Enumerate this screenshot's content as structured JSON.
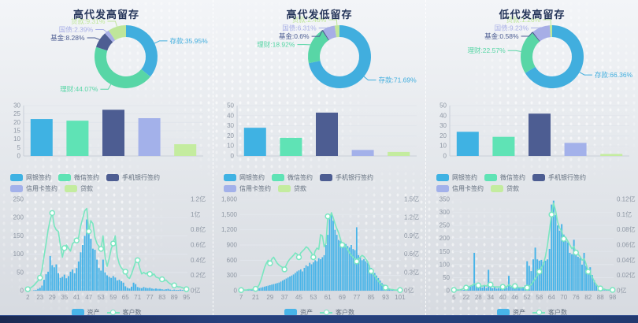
{
  "colors": {
    "bar_series": [
      "#3fb2e3",
      "#5fe3b5",
      "#4d5d92",
      "#a3b1ea",
      "#c4ec9f"
    ],
    "donut_series": [
      "#41aede",
      "#58d6a6",
      "#4d5d92",
      "#a7aee6",
      "#bfe69a"
    ],
    "hist_bar": "#48b4e8",
    "hist_line": "#79e6c0",
    "axis_text": "#8d96a3",
    "grid": "#e2e6ec",
    "axis_line": "#c9cfd8",
    "title": "#25355a",
    "legend_text": "#626e7d"
  },
  "chart_data": [
    {
      "type": "pie",
      "title": "高代发高留存",
      "labels": [
        "存款",
        "理财",
        "基金",
        "国债",
        "贷款"
      ],
      "values": [
        35.95,
        44.07,
        8.28,
        2.39,
        9.31
      ],
      "unit": "%",
      "legend_position": "none"
    },
    {
      "type": "bar",
      "categories": [
        "网银签约",
        "微信签约",
        "手机银行签约",
        "信用卡签约",
        "贷款"
      ],
      "values": [
        22,
        21,
        27.5,
        22.5,
        7
      ],
      "ytick_labels": [
        "0",
        "5",
        "10",
        "15",
        "20",
        "25",
        "30"
      ],
      "ymax": 30,
      "legend_position": "bottom"
    },
    {
      "type": "bar",
      "x_tick_labels": [
        "2",
        "23",
        "29",
        "35",
        "41",
        "47",
        "53",
        "59",
        "65",
        "71",
        "77",
        "83",
        "89",
        "95"
      ],
      "x_tick_step": 6,
      "left_tick_labels": [
        "0",
        "50",
        "100",
        "150",
        "200",
        "250"
      ],
      "left_max": 250,
      "right_tick_labels": [
        "0亿",
        "0.2亿",
        "0.4亿",
        "0.6亿",
        "0.8亿",
        "1亿",
        "1.2亿"
      ],
      "right_max": 1.2,
      "series": [
        {
          "name": "资产",
          "kind": "bar",
          "axis": "left",
          "values": [
            2,
            0,
            0,
            1,
            2,
            5,
            8,
            14,
            30,
            45,
            52,
            95,
            70,
            64,
            72,
            48,
            35,
            38,
            44,
            34,
            40,
            52,
            58,
            48,
            62,
            80,
            105,
            125,
            150,
            195,
            160,
            142,
            115,
            112,
            85,
            62,
            55,
            85,
            50,
            42,
            38,
            35,
            40,
            36,
            28,
            30,
            26,
            22,
            12,
            8,
            6,
            11,
            22,
            18,
            10,
            8,
            7,
            10,
            8,
            7,
            8,
            6,
            5,
            6,
            5,
            5,
            4,
            3,
            4,
            5,
            3,
            2,
            3,
            2,
            2,
            3,
            2,
            1,
            2
          ]
        },
        {
          "name": "客户数",
          "kind": "line",
          "axis": "right",
          "values": [
            0.02,
            0.03,
            0.05,
            0.07,
            0.1,
            0.13,
            0.17,
            0.28,
            0.45,
            0.62,
            0.8,
            0.93,
            1.02,
            0.85,
            0.8,
            0.78,
            0.6,
            0.44,
            0.56,
            0.6,
            0.56,
            0.52,
            0.62,
            0.64,
            0.66,
            0.7,
            0.85,
            0.95,
            1.05,
            1.08,
            0.78,
            0.92,
            0.88,
            0.7,
            0.62,
            0.58,
            0.55,
            0.72,
            0.45,
            0.32,
            0.42,
            0.55,
            0.62,
            0.72,
            0.45,
            0.35,
            0.3,
            0.27,
            0.25,
            0.18,
            0.16,
            0.22,
            0.3,
            0.38,
            0.4,
            0.3,
            0.22,
            0.24,
            0.22,
            0.24,
            0.22,
            0.2,
            0.22,
            0.18,
            0.17,
            0.16,
            0.15,
            0.13,
            0.14,
            0.11,
            0.09,
            0.08,
            0.07,
            0.06,
            0.05,
            0.05,
            0.04,
            0.03,
            0.02
          ]
        }
      ]
    },
    {
      "type": "pie",
      "title": "高代发低留存",
      "labels": [
        "存款",
        "理财",
        "基金",
        "国债",
        "贷款"
      ],
      "values": [
        71.69,
        18.92,
        0.6,
        6.31,
        2.48
      ],
      "unit": "%",
      "legend_position": "none"
    },
    {
      "type": "bar",
      "categories": [
        "网银签约",
        "微信签约",
        "手机银行签约",
        "信用卡签约",
        "贷款"
      ],
      "values": [
        28,
        18,
        43,
        6,
        4
      ],
      "ytick_labels": [
        "0",
        "10",
        "20",
        "30",
        "40",
        "50"
      ],
      "ymax": 50,
      "legend_position": "bottom"
    },
    {
      "type": "bar",
      "x_tick_labels": [
        "7",
        "21",
        "29",
        "37",
        "45",
        "53",
        "61",
        "69",
        "77",
        "85",
        "93",
        "101"
      ],
      "x_tick_step": 8,
      "left_tick_labels": [
        "0",
        "300",
        "600",
        "900",
        "1,200",
        "1,500",
        "1,800"
      ],
      "left_max": 1800,
      "right_tick_labels": [
        "0亿",
        "0.3亿",
        "0.6亿",
        "0.9亿",
        "1.2亿",
        "1.5亿"
      ],
      "right_max": 1.5,
      "series": [
        {
          "name": "资产",
          "kind": "bar",
          "axis": "left",
          "values": [
            5,
            2,
            3,
            5,
            8,
            10,
            15,
            20,
            30,
            40,
            50,
            60,
            70,
            80,
            90,
            100,
            110,
            120,
            130,
            140,
            150,
            160,
            180,
            200,
            220,
            240,
            260,
            280,
            300,
            320,
            350,
            380,
            400,
            420,
            380,
            450,
            500,
            480,
            550,
            520,
            560,
            600,
            580,
            640,
            620,
            660,
            700,
            900,
            1100,
            1450,
            1500,
            1380,
            1200,
            1100,
            1000,
            980,
            950,
            900,
            920,
            880,
            850,
            900,
            820,
            800,
            1250,
            700,
            650,
            600,
            620,
            580,
            550,
            500,
            450,
            400,
            350,
            300,
            250,
            200,
            150,
            120,
            80,
            60,
            40,
            30,
            20,
            10,
            5,
            3,
            2
          ]
        },
        {
          "name": "客户数",
          "kind": "line",
          "axis": "right",
          "values": [
            0.01,
            0.01,
            0.01,
            0.01,
            0.02,
            0.02,
            0.02,
            0.03,
            0.03,
            0.05,
            0.1,
            0.18,
            0.28,
            0.38,
            0.45,
            0.5,
            0.45,
            0.52,
            0.55,
            0.5,
            0.45,
            0.42,
            0.4,
            0.38,
            0.35,
            0.42,
            0.48,
            0.52,
            0.55,
            0.58,
            0.62,
            0.6,
            0.55,
            0.62,
            0.65,
            0.68,
            0.72,
            0.7,
            0.66,
            0.62,
            0.55,
            0.65,
            0.7,
            0.68,
            0.92,
            0.9,
            0.72,
            0.78,
            1.22,
            1.18,
            1.28,
            1.2,
            1.1,
            1.02,
            0.95,
            0.85,
            0.75,
            0.78,
            0.72,
            0.68,
            0.62,
            0.58,
            0.55,
            0.52,
            0.48,
            0.52,
            0.55,
            0.58,
            0.56,
            0.52,
            0.48,
            0.4,
            0.32,
            0.28,
            0.24,
            0.2,
            0.16,
            0.12,
            0.09,
            0.07,
            0.05,
            0.04,
            0.03,
            0.02,
            0.02,
            0.01,
            0.01,
            0.01,
            0.01
          ]
        }
      ]
    },
    {
      "type": "pie",
      "title": "低代发高留存",
      "labels": [
        "存款",
        "理财",
        "基金",
        "国债",
        "贷款"
      ],
      "values": [
        66.36,
        22.57,
        0.58,
        9.23,
        1.26
      ],
      "unit": "%",
      "legend_position": "none"
    },
    {
      "type": "bar",
      "categories": [
        "网银签约",
        "微信签约",
        "手机银行签约",
        "信用卡签约",
        "贷款"
      ],
      "values": [
        24,
        19,
        42,
        13,
        2
      ],
      "ytick_labels": [
        "0",
        "10",
        "20",
        "30",
        "40",
        "50"
      ],
      "ymax": 50,
      "legend_position": "bottom"
    },
    {
      "type": "bar",
      "x_tick_labels": [
        "5",
        "22",
        "28",
        "34",
        "40",
        "46",
        "52",
        "58",
        "64",
        "70",
        "76",
        "82",
        "88",
        "98"
      ],
      "x_tick_step": 6,
      "left_tick_labels": [
        "0",
        "50",
        "100",
        "150",
        "200",
        "250",
        "300",
        "350"
      ],
      "left_max": 350,
      "right_tick_labels": [
        "0亿",
        "0.02亿",
        "0.04亿",
        "0.06亿",
        "0.08亿",
        "0.1亿",
        "0.12亿"
      ],
      "right_max": 0.12,
      "series": [
        {
          "name": "资产",
          "kind": "bar",
          "axis": "left",
          "values": [
            2,
            0,
            1,
            0,
            2,
            3,
            5,
            8,
            15,
            20,
            145,
            25,
            20,
            15,
            12,
            18,
            10,
            80,
            15,
            10,
            12,
            8,
            10,
            12,
            15,
            18,
            12,
            57,
            15,
            12,
            18,
            15,
            12,
            10,
            15,
            20,
            113,
            95,
            75,
            120,
            165,
            120,
            115,
            118,
            110,
            115,
            120,
            160,
            330,
            345,
            290,
            250,
            230,
            255,
            215,
            190,
            185,
            145,
            140,
            195,
            145,
            130,
            125,
            100,
            145,
            95,
            75,
            90,
            60,
            40,
            25,
            10,
            5,
            3,
            2,
            1,
            1,
            0,
            1
          ]
        },
        {
          "name": "客户数",
          "kind": "line",
          "axis": "right",
          "values": [
            0.001,
            0.001,
            0.001,
            0.001,
            0.002,
            0.003,
            0.004,
            0.005,
            0.006,
            0.007,
            0.009,
            0.008,
            0.007,
            0.006,
            0.006,
            0.007,
            0.006,
            0.009,
            0.008,
            0.006,
            0.005,
            0.005,
            0.005,
            0.005,
            0.005,
            0.006,
            0.005,
            0.008,
            0.006,
            0.005,
            0.006,
            0.005,
            0.004,
            0.004,
            0.004,
            0.004,
            0.004,
            0.006,
            0.008,
            0.012,
            0.016,
            0.02,
            0.025,
            0.03,
            0.035,
            0.045,
            0.06,
            0.08,
            0.1,
            0.115,
            0.105,
            0.09,
            0.082,
            0.078,
            0.068,
            0.07,
            0.065,
            0.06,
            0.055,
            0.058,
            0.05,
            0.048,
            0.045,
            0.04,
            0.042,
            0.035,
            0.025,
            0.022,
            0.018,
            0.012,
            0.008,
            0.005,
            0.003,
            0.002,
            0.002,
            0.001,
            0.001,
            0.001,
            0.001
          ]
        }
      ]
    }
  ]
}
